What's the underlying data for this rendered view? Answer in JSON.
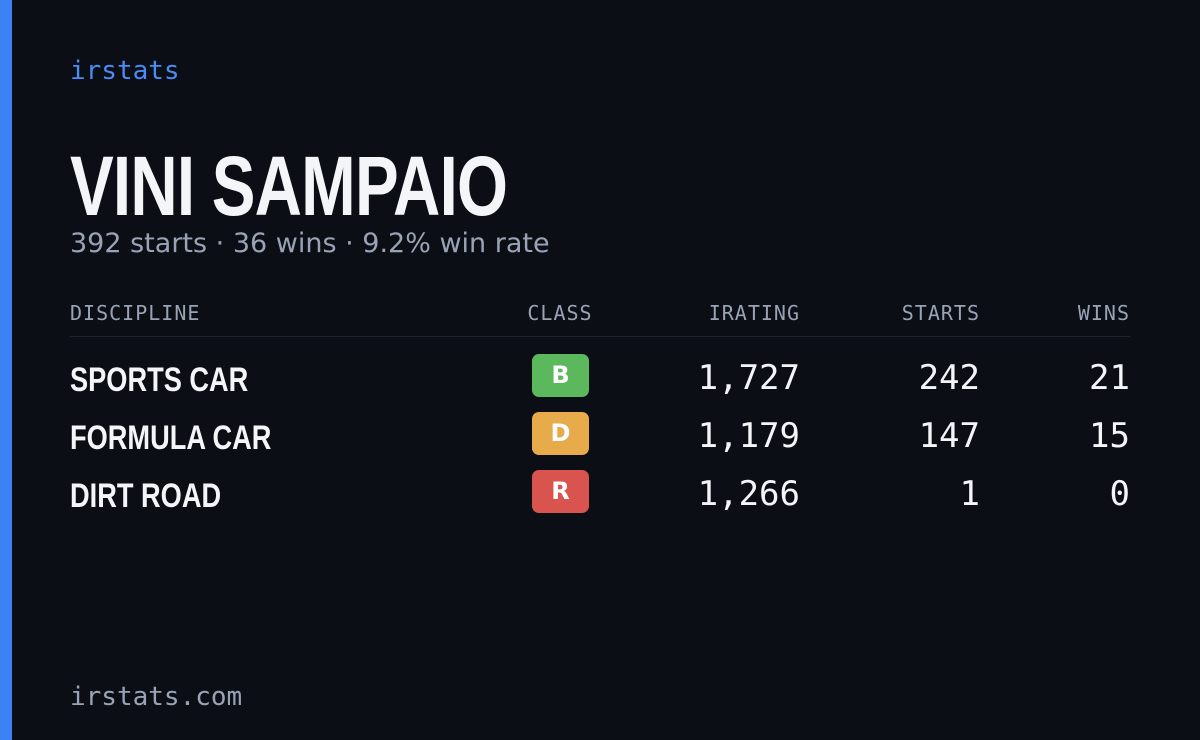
{
  "brand": "irstats",
  "player": {
    "name": "VINI SAMPAIO",
    "summary": "392 starts · 36 wins · 9.2% win rate"
  },
  "table": {
    "headers": [
      "DISCIPLINE",
      "CLASS",
      "IRATING",
      "STARTS",
      "WINS"
    ],
    "rows": [
      {
        "discipline": "SPORTS CAR",
        "class": "B",
        "color": "#5cb85c",
        "irating": "1,727",
        "starts": 242,
        "wins": 21
      },
      {
        "discipline": "FORMULA CAR",
        "class": "D",
        "color": "#e8ab4c",
        "irating": "1,179",
        "starts": 147,
        "wins": 15
      },
      {
        "discipline": "DIRT ROAD",
        "class": "R",
        "color": "#d9534f",
        "irating": "1,266",
        "starts": 1,
        "wins": 0
      }
    ]
  },
  "footer": "irstats.com"
}
